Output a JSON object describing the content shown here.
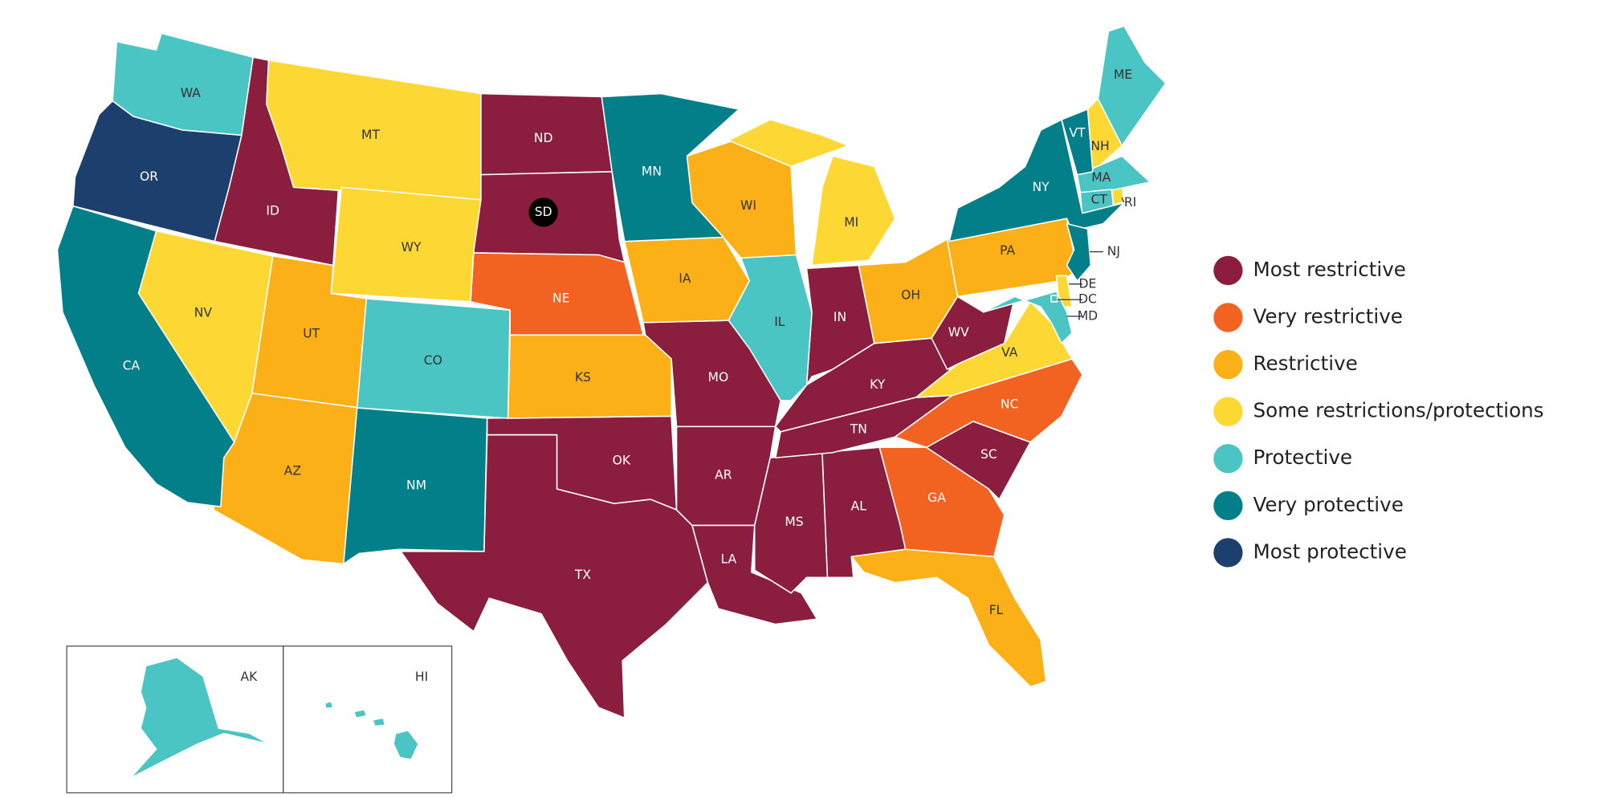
{
  "legend": {
    "items": [
      {
        "label": "Most restrictive",
        "color": "#8b1e3f",
        "states": [
          "ND",
          "SD",
          "ID",
          "MO",
          "IN",
          "KY",
          "WV",
          "OK",
          "TX",
          "AR",
          "LA",
          "MS",
          "AL",
          "TN",
          "SC"
        ]
      },
      {
        "label": "Very restrictive",
        "color": "#f26322",
        "states": [
          "NE",
          "NC",
          "GA"
        ]
      },
      {
        "label": "Restrictive",
        "color": "#fbb017",
        "states": [
          "UT",
          "AZ",
          "KS",
          "IA",
          "WI",
          "OH",
          "PA",
          "FL"
        ]
      },
      {
        "label": "Some restrictions/protections",
        "color": "#fdd835",
        "states": [
          "MT",
          "WY",
          "NV",
          "MI",
          "VA",
          "NH",
          "RI",
          "DE"
        ]
      },
      {
        "label": "Protective",
        "color": "#4bc4c4",
        "states": [
          "WA",
          "CO",
          "IL",
          "ME",
          "MA",
          "CT",
          "MD",
          "DC",
          "AK",
          "HI"
        ]
      },
      {
        "label": "Very protective",
        "color": "#037f8a",
        "states": [
          "CA",
          "NM",
          "MN",
          "NY",
          "VT",
          "NJ"
        ]
      },
      {
        "label": "Most protective",
        "color": "#1c3f6e",
        "states": [
          "OR"
        ]
      }
    ]
  }
}
